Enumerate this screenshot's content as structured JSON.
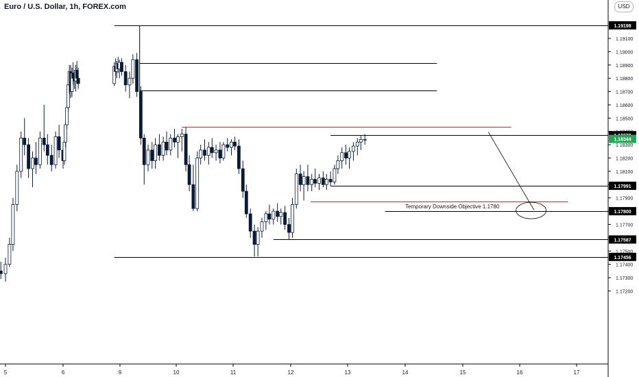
{
  "header": {
    "title": "Euro / U.S. Dollar, 1h, FOREX.com",
    "currency_button": "USD"
  },
  "colors": {
    "up_candle": "#ffffff",
    "down_candle": "#0b1b33",
    "candle_outline": "#0b1b33",
    "support_line": "#000000",
    "resistance_line_red": "#b2263a",
    "last_price_badge": "#26a65b",
    "price_tag_bg": "#000000"
  },
  "chart_data": {
    "type": "candlestick",
    "title": "Euro / U.S. Dollar, 1h, FOREX.com",
    "y_axis": {
      "side": "right",
      "ylim": [
        1.1722,
        1.1957
      ],
      "ticks": [
        "1.19100",
        "1.19000",
        "1.18900",
        "1.18800",
        "1.18700",
        "1.18600",
        "1.18500",
        "1.18400",
        "1.18300",
        "1.18200",
        "1.18100",
        "1.18000",
        "1.17900",
        "1.17800",
        "1.17700",
        "1.17600",
        "1.17500",
        "1.17400",
        "1.17300",
        "1.17200"
      ]
    },
    "x_axis": {
      "ticks": [
        "5",
        "6",
        "9",
        "10",
        "11",
        "12",
        "13",
        "14",
        "15",
        "16",
        "17"
      ]
    },
    "last_price": "1.18344",
    "price_levels": [
      {
        "label": "1.19198",
        "value": 1.19198,
        "color": "black",
        "from_day": 8.7,
        "to_day": 17.6,
        "tag": true
      },
      {
        "label": "",
        "value": 1.18916,
        "color": "black",
        "from_day": 9.35,
        "to_day": 14.55,
        "tag": false
      },
      {
        "label": "",
        "value": 1.18706,
        "color": "black",
        "from_day": 9.35,
        "to_day": 14.55,
        "tag": false
      },
      {
        "label": "",
        "value": 1.18435,
        "color": "red",
        "from_day": 10.1,
        "to_day": 15.85,
        "tag": false
      },
      {
        "label": "1.18372",
        "value": 1.18372,
        "color": "black",
        "from_day": 12.7,
        "to_day": 17.6,
        "tag": true
      },
      {
        "label": "1.17991",
        "value": 1.17991,
        "color": "black",
        "from_day": 12.7,
        "to_day": 17.6,
        "tag": true
      },
      {
        "label": "",
        "value": 1.17875,
        "color": "red",
        "from_day": 12.35,
        "to_day": 16.85,
        "tag": false
      },
      {
        "label": "1.17800",
        "value": 1.178,
        "color": "black",
        "from_day": 13.65,
        "to_day": 17.6,
        "tag": true
      },
      {
        "label": "1.17587",
        "value": 1.17587,
        "color": "black",
        "from_day": 11.7,
        "to_day": 17.6,
        "tag": true
      },
      {
        "label": "1.17456",
        "value": 1.17456,
        "color": "black",
        "from_day": 8.7,
        "to_day": 17.6,
        "tag": true
      }
    ],
    "vertical_marker": {
      "day": 9.35,
      "from": 1.19198,
      "to": 1.187
    },
    "annotation": {
      "text": "Temporary Downside Objective 1.1780",
      "arrow_from": {
        "day": 15.45,
        "value": 1.18395
      },
      "arrow_to": {
        "day": 16.25,
        "value": 1.1781
      },
      "ellipse": {
        "day": 16.2,
        "value": 1.17805
      }
    },
    "candles": [
      [
        4.85,
        1.1733,
        1.1738,
        1.173,
        1.1735
      ],
      [
        4.92,
        1.1735,
        1.1742,
        1.1729,
        1.1733
      ],
      [
        5.0,
        1.1733,
        1.1745,
        1.1727,
        1.174
      ],
      [
        5.07,
        1.174,
        1.176,
        1.1738,
        1.1755
      ],
      [
        5.13,
        1.1755,
        1.179,
        1.175,
        1.1785
      ],
      [
        5.2,
        1.1785,
        1.1815,
        1.178,
        1.181
      ],
      [
        5.27,
        1.181,
        1.184,
        1.1805,
        1.1835
      ],
      [
        5.33,
        1.1835,
        1.185,
        1.1822,
        1.183
      ],
      [
        5.4,
        1.183,
        1.1835,
        1.1805,
        1.1812
      ],
      [
        5.47,
        1.1812,
        1.1825,
        1.1798,
        1.182
      ],
      [
        5.53,
        1.182,
        1.1832,
        1.1808,
        1.1815
      ],
      [
        5.6,
        1.1815,
        1.184,
        1.1812,
        1.1835
      ],
      [
        5.67,
        1.1835,
        1.186,
        1.1825,
        1.183
      ],
      [
        5.73,
        1.183,
        1.1838,
        1.1815,
        1.1822
      ],
      [
        5.8,
        1.1822,
        1.183,
        1.181,
        1.1815
      ],
      [
        5.87,
        1.1815,
        1.184,
        1.1812,
        1.1836
      ],
      [
        5.93,
        1.1836,
        1.1845,
        1.182,
        1.1826
      ],
      [
        6.0,
        1.1826,
        1.1832,
        1.1812,
        1.1818
      ],
      [
        6.07,
        1.1818,
        1.1835,
        1.1815,
        1.1832
      ],
      [
        6.13,
        1.1832,
        1.1848,
        1.1828,
        1.1845
      ],
      [
        6.2,
        1.1845,
        1.186,
        1.1842,
        1.1858
      ],
      [
        6.27,
        1.1858,
        1.188,
        1.1855,
        1.1875
      ],
      [
        6.33,
        1.1875,
        1.189,
        1.1868,
        1.1885
      ],
      [
        6.4,
        1.1885,
        1.189,
        1.1865,
        1.187
      ],
      [
        6.47,
        1.187,
        1.1888,
        1.1866,
        1.1884
      ],
      [
        6.53,
        1.1884,
        1.1892,
        1.1875,
        1.188
      ],
      [
        6.6,
        1.188,
        1.1886,
        1.1872,
        1.1878
      ],
      [
        6.67,
        1.1878,
        1.189,
        1.187,
        1.1886
      ],
      [
        6.73,
        1.1886,
        1.1893,
        1.1876,
        1.188
      ],
      [
        6.8,
        1.188,
        1.1888,
        1.1872,
        1.1876
      ],
      [
        8.7,
        1.1876,
        1.1892,
        1.1874,
        1.1889
      ],
      [
        8.77,
        1.1889,
        1.1895,
        1.1882,
        1.1885
      ],
      [
        8.83,
        1.1885,
        1.1893,
        1.188,
        1.1891
      ],
      [
        8.9,
        1.1891,
        1.1896,
        1.1884,
        1.1887
      ],
      [
        8.97,
        1.1887,
        1.1894,
        1.188,
        1.1892
      ],
      [
        9.03,
        1.1892,
        1.1895,
        1.1882,
        1.1885
      ],
      [
        9.1,
        1.1885,
        1.189,
        1.187,
        1.1875
      ],
      [
        9.17,
        1.1875,
        1.1885,
        1.1865,
        1.188
      ],
      [
        9.23,
        1.188,
        1.1898,
        1.1876,
        1.1894
      ],
      [
        9.3,
        1.1894,
        1.1899,
        1.1866,
        1.187
      ],
      [
        9.37,
        1.187,
        1.1874,
        1.183,
        1.1835
      ],
      [
        9.43,
        1.1835,
        1.1838,
        1.18,
        1.1815
      ],
      [
        9.5,
        1.1815,
        1.183,
        1.181,
        1.1826
      ],
      [
        9.57,
        1.1826,
        1.1832,
        1.1812,
        1.1818
      ],
      [
        9.63,
        1.1818,
        1.1835,
        1.1812,
        1.183
      ],
      [
        9.7,
        1.183,
        1.1838,
        1.1818,
        1.1822
      ],
      [
        9.77,
        1.1822,
        1.1836,
        1.1818,
        1.1832
      ],
      [
        9.83,
        1.1832,
        1.184,
        1.1822,
        1.1826
      ],
      [
        9.9,
        1.1826,
        1.1838,
        1.1822,
        1.1835
      ],
      [
        9.97,
        1.1835,
        1.1842,
        1.1828,
        1.1832
      ],
      [
        10.03,
        1.1832,
        1.1838,
        1.182,
        1.1836
      ],
      [
        10.1,
        1.1836,
        1.1842,
        1.1825,
        1.1838
      ],
      [
        10.17,
        1.1838,
        1.1843,
        1.181,
        1.1815
      ],
      [
        10.23,
        1.1815,
        1.1822,
        1.1795,
        1.18
      ],
      [
        10.3,
        1.18,
        1.1815,
        1.178,
        1.1782
      ],
      [
        10.37,
        1.1782,
        1.1825,
        1.178,
        1.182
      ],
      [
        10.43,
        1.182,
        1.183,
        1.1815,
        1.1826
      ],
      [
        10.5,
        1.1826,
        1.1834,
        1.1818,
        1.1822
      ],
      [
        10.57,
        1.1822,
        1.1832,
        1.1815,
        1.1828
      ],
      [
        10.63,
        1.1828,
        1.1835,
        1.182,
        1.1824
      ],
      [
        10.7,
        1.1824,
        1.183,
        1.1818,
        1.1826
      ],
      [
        10.77,
        1.1826,
        1.1832,
        1.1816,
        1.182
      ],
      [
        10.83,
        1.182,
        1.1832,
        1.1818,
        1.183
      ],
      [
        10.9,
        1.183,
        1.1835,
        1.1825,
        1.1828
      ],
      [
        10.97,
        1.1828,
        1.1834,
        1.1822,
        1.1832
      ],
      [
        11.03,
        1.1832,
        1.1836,
        1.1826,
        1.1829
      ],
      [
        11.1,
        1.1829,
        1.1834,
        1.1808,
        1.1812
      ],
      [
        11.17,
        1.1812,
        1.1818,
        1.179,
        1.1795
      ],
      [
        11.23,
        1.1795,
        1.18,
        1.1775,
        1.1778
      ],
      [
        11.3,
        1.1778,
        1.1782,
        1.176,
        1.1765
      ],
      [
        11.37,
        1.1765,
        1.177,
        1.1746,
        1.1755
      ],
      [
        11.43,
        1.1755,
        1.1768,
        1.1746,
        1.1765
      ],
      [
        11.5,
        1.1765,
        1.1775,
        1.176,
        1.1772
      ],
      [
        11.57,
        1.1772,
        1.178,
        1.1766,
        1.1778
      ],
      [
        11.63,
        1.1778,
        1.1785,
        1.177,
        1.1774
      ],
      [
        11.7,
        1.1774,
        1.1782,
        1.177,
        1.178
      ],
      [
        11.77,
        1.178,
        1.1786,
        1.1772,
        1.1776
      ],
      [
        11.83,
        1.1776,
        1.1782,
        1.177,
        1.1779
      ],
      [
        11.9,
        1.1779,
        1.1784,
        1.1766,
        1.177
      ],
      [
        11.97,
        1.177,
        1.1775,
        1.1759,
        1.1764
      ],
      [
        12.03,
        1.1764,
        1.179,
        1.176,
        1.1785
      ],
      [
        12.1,
        1.1785,
        1.1812,
        1.1782,
        1.1808
      ],
      [
        12.17,
        1.1808,
        1.1815,
        1.1795,
        1.18
      ],
      [
        12.23,
        1.18,
        1.181,
        1.1788,
        1.1806
      ],
      [
        12.3,
        1.1806,
        1.1815,
        1.1795,
        1.18
      ],
      [
        12.37,
        1.18,
        1.1808,
        1.1795,
        1.1804
      ],
      [
        12.43,
        1.1804,
        1.1812,
        1.1798,
        1.1801
      ],
      [
        12.5,
        1.1801,
        1.1808,
        1.1796,
        1.1805
      ],
      [
        12.57,
        1.1805,
        1.181,
        1.1798,
        1.18
      ],
      [
        12.63,
        1.18,
        1.1808,
        1.1796,
        1.1804
      ],
      [
        12.7,
        1.1804,
        1.181,
        1.1799,
        1.1802
      ],
      [
        12.77,
        1.1802,
        1.1815,
        1.18,
        1.1812
      ],
      [
        12.83,
        1.1812,
        1.1822,
        1.1808,
        1.1818
      ],
      [
        12.9,
        1.1818,
        1.1828,
        1.1812,
        1.1824
      ],
      [
        12.97,
        1.1824,
        1.183,
        1.1815,
        1.182
      ],
      [
        13.03,
        1.182,
        1.1828,
        1.1812,
        1.1825
      ],
      [
        13.1,
        1.1825,
        1.1832,
        1.1818,
        1.1829
      ],
      [
        13.17,
        1.1829,
        1.1835,
        1.1822,
        1.1832
      ],
      [
        13.23,
        1.1832,
        1.1837,
        1.1826,
        1.1834
      ],
      [
        13.3,
        1.1834,
        1.1838,
        1.183,
        1.1834
      ]
    ]
  }
}
